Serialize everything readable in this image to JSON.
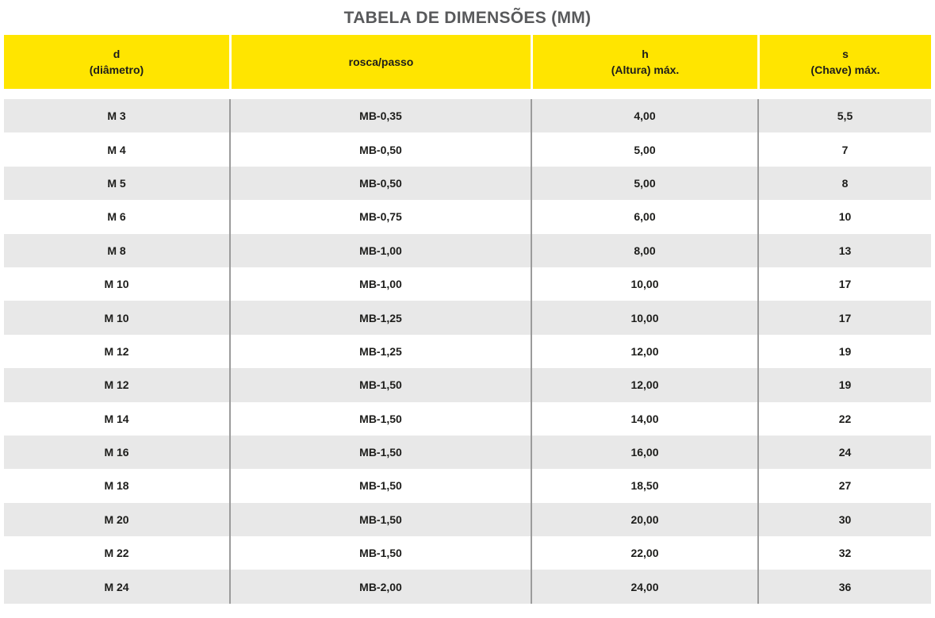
{
  "title": "TABELA DE DIMENSÕES (MM)",
  "colors": {
    "header_bg": "#FFE500",
    "row_alt_bg": "#E8E8E8",
    "row_bg": "#FFFFFF",
    "body_divider": "#9B9B9B",
    "title_color": "#58595B",
    "text_color": "#1D1D1B"
  },
  "table": {
    "header_labels": [
      "d\n(diâmetro)",
      "rosca/passo",
      "h\n(Altura) máx.",
      "s\n(Chave) máx."
    ],
    "rows": [
      [
        "M 3",
        "MB-0,35",
        "4,00",
        "5,5"
      ],
      [
        "M 4",
        "MB-0,50",
        "5,00",
        "7"
      ],
      [
        "M 5",
        "MB-0,50",
        "5,00",
        "8"
      ],
      [
        "M 6",
        "MB-0,75",
        "6,00",
        "10"
      ],
      [
        "M 8",
        "MB-1,00",
        "8,00",
        "13"
      ],
      [
        "M 10",
        "MB-1,00",
        "10,00",
        "17"
      ],
      [
        "M 10",
        "MB-1,25",
        "10,00",
        "17"
      ],
      [
        "M 12",
        "MB-1,25",
        "12,00",
        "19"
      ],
      [
        "M 12",
        "MB-1,50",
        "12,00",
        "19"
      ],
      [
        "M 14",
        "MB-1,50",
        "14,00",
        "22"
      ],
      [
        "M 16",
        "MB-1,50",
        "16,00",
        "24"
      ],
      [
        "M 18",
        "MB-1,50",
        "18,50",
        "27"
      ],
      [
        "M 20",
        "MB-1,50",
        "20,00",
        "30"
      ],
      [
        "M 22",
        "MB-1,50",
        "22,00",
        "32"
      ],
      [
        "M 24",
        "MB-2,00",
        "24,00",
        "36"
      ]
    ]
  }
}
